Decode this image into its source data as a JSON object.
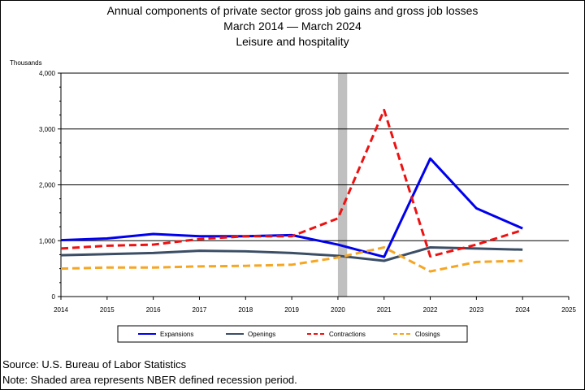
{
  "title_lines": [
    "Annual components of private sector gross job gains and gross job losses",
    "March 2014 — March 2024",
    "Leisure and hospitality"
  ],
  "footer": {
    "source": "Source: U.S. Bureau of Labor Statistics",
    "note": "Note: Shaded area represents NBER defined recession period."
  },
  "chart_data": {
    "type": "line",
    "title": "Annual components of private sector gross job gains and gross job losses",
    "ylabel": "Thousands",
    "xlabel": "",
    "x": [
      2014,
      2015,
      2016,
      2017,
      2018,
      2019,
      2020,
      2021,
      2022,
      2023,
      2024
    ],
    "xlim": [
      2014,
      2025
    ],
    "ylim": [
      0,
      4000
    ],
    "x_ticks": [
      2014,
      2015,
      2016,
      2017,
      2018,
      2019,
      2020,
      2021,
      2022,
      2023,
      2024,
      2025
    ],
    "y_ticks": [
      0,
      1000,
      2000,
      3000,
      4000
    ],
    "y_tick_labels": [
      "0",
      "1,000",
      "2,000",
      "3,000",
      "4,000"
    ],
    "grid": "horizontal",
    "legend_position": "bottom",
    "recession_band": {
      "start": 2020.0,
      "end": 2020.2,
      "color": "#c0c0c0"
    },
    "series": [
      {
        "name": "Expansions",
        "color": "#0000ee",
        "dash": "solid",
        "width": 3,
        "values": [
          1010,
          1040,
          1120,
          1080,
          1080,
          1100,
          930,
          710,
          2470,
          1580,
          1220
        ]
      },
      {
        "name": "Openings",
        "color": "#3b4e66",
        "dash": "solid",
        "width": 3,
        "values": [
          740,
          760,
          780,
          820,
          810,
          780,
          730,
          640,
          880,
          860,
          840
        ]
      },
      {
        "name": "Contractions",
        "color": "#ee1111",
        "dash": "dashed",
        "width": 3,
        "values": [
          860,
          910,
          930,
          1030,
          1080,
          1080,
          1400,
          3340,
          720,
          930,
          1190
        ]
      },
      {
        "name": "Closings",
        "color": "#f5a623",
        "dash": "dashed",
        "width": 3,
        "values": [
          500,
          520,
          520,
          540,
          550,
          570,
          700,
          880,
          450,
          620,
          640
        ]
      }
    ]
  }
}
